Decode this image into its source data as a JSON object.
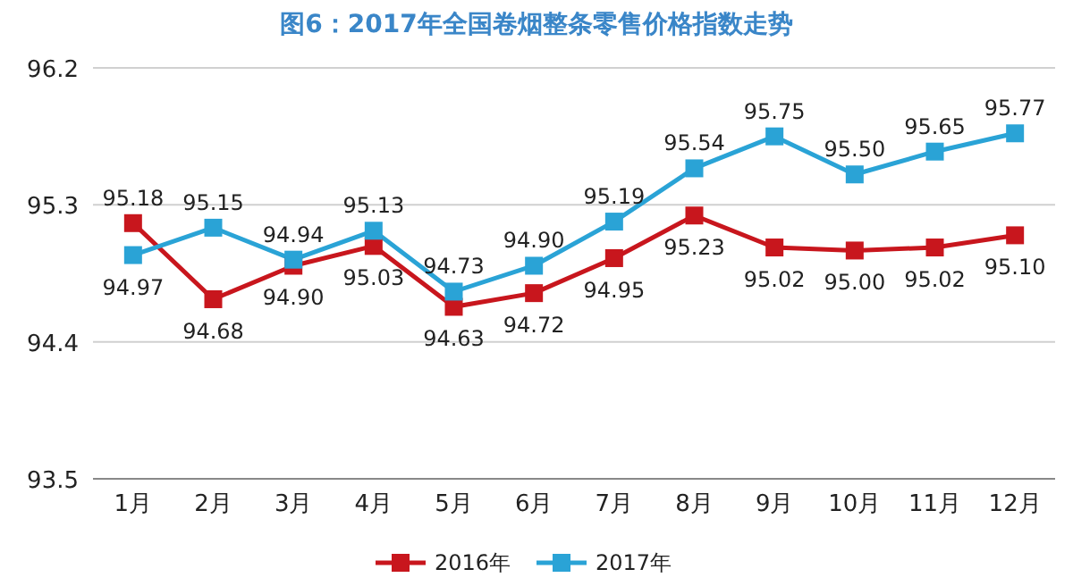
{
  "chart_data": {
    "type": "line",
    "title": "图6：2017年全国卷烟整条零售价格指数走势",
    "categories": [
      "1月",
      "2月",
      "3月",
      "4月",
      "5月",
      "6月",
      "7月",
      "8月",
      "9月",
      "10月",
      "11月",
      "12月"
    ],
    "series": [
      {
        "name": "2016年",
        "color": "#c8161d",
        "values": [
          95.18,
          94.68,
          94.9,
          95.03,
          94.63,
          94.72,
          94.95,
          95.23,
          95.02,
          95.0,
          95.02,
          95.1
        ],
        "value_labels": [
          "95.18",
          "94.68",
          "94.90",
          "95.03",
          "94.63",
          "94.72",
          "94.95",
          "95.23",
          "95.02",
          "95.00",
          "95.02",
          "95.10"
        ]
      },
      {
        "name": "2017年",
        "color": "#2aa3d6",
        "values": [
          94.97,
          95.15,
          94.94,
          95.13,
          94.73,
          94.9,
          95.19,
          95.54,
          95.75,
          95.5,
          95.65,
          95.77
        ],
        "value_labels": [
          "94.97",
          "95.15",
          "94.94",
          "95.13",
          "94.73",
          "94.90",
          "95.19",
          "95.54",
          "95.75",
          "95.50",
          "95.65",
          "95.77"
        ]
      }
    ],
    "ylim": [
      93.5,
      96.2
    ],
    "yticks": [
      93.5,
      94.4,
      95.3,
      96.2
    ],
    "grid": "y",
    "legend": "bottom",
    "marker": "square",
    "line_style": "solid"
  }
}
